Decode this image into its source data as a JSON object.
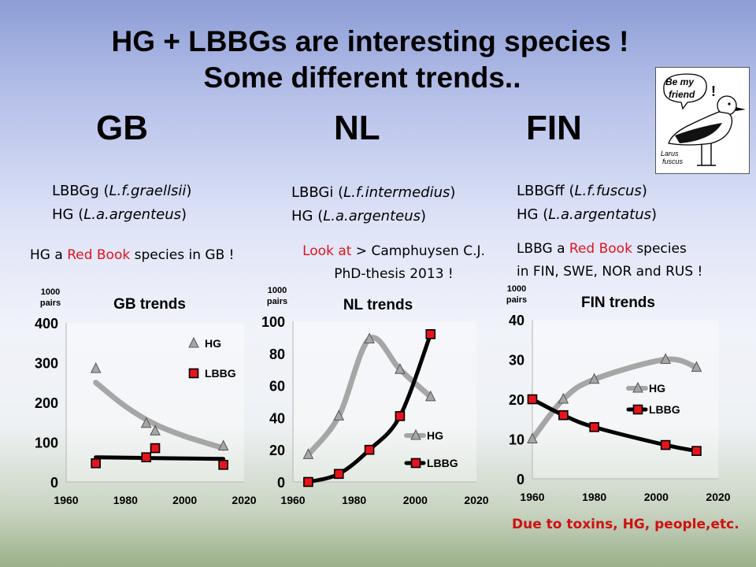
{
  "slide": {
    "title_line1": "HG  +  LBBGs are interesting species !",
    "title_line2": "Some different trends..",
    "countries": [
      "GB",
      "NL",
      "FIN"
    ],
    "gb_sub": [
      {
        "name": "LBBGg (",
        "latin": "L.f.graellsii",
        "end": ")"
      },
      {
        "name": "HG  (",
        "latin": "L.a.argenteus",
        "end": ")"
      }
    ],
    "nl_sub": [
      {
        "name": "LBBGi (",
        "latin": "L.f.intermedius",
        "end": ")"
      },
      {
        "name": "HG  (",
        "latin": "L.a.argenteus",
        "end": ")"
      }
    ],
    "fin_sub": [
      {
        "name": "LBBGff (",
        "latin": "L.f.fuscus",
        "end": ")"
      },
      {
        "name": "HG  (",
        "latin": "L.a.argentatus",
        "end": ")"
      }
    ],
    "gb_note": {
      "pre": "HG a ",
      "red": "Red Book",
      "post": " species in GB  !"
    },
    "nl_note": {
      "red": "Look at",
      "post": " > Camphuysen C.J.",
      "line2": "PhD-thesis 2013  !"
    },
    "fin_note": {
      "pre": "LBBG  a ",
      "red": "Red Book",
      "post": " species",
      "line2": "in FIN, SWE, NOR and RUS !"
    },
    "footer": "Due to toxins, HG, people,etc.",
    "badge": {
      "line1": "Be my",
      "line2": "friend",
      "mark": "!",
      "latin1": "Larus",
      "latin2": "fuscus"
    }
  },
  "chart_data": [
    {
      "type": "line",
      "title": "GB trends",
      "ylabel": "1000 pairs",
      "xlim": [
        1960,
        2020
      ],
      "ylim": [
        0,
        400
      ],
      "xticks": [
        1960,
        1980,
        2000,
        2020
      ],
      "yticks": [
        0,
        100,
        200,
        300,
        400
      ],
      "legend": "right",
      "series": [
        {
          "name": "HG",
          "color": "#a6a6a6",
          "marker": "triangle",
          "points": [
            [
              1970,
              285
            ],
            [
              1987,
              147
            ],
            [
              1990,
              128
            ],
            [
              2013,
              90
            ]
          ],
          "trend": [
            [
              1970,
              250
            ],
            [
              1980,
              190
            ],
            [
              1990,
              145
            ],
            [
              2000,
              115
            ],
            [
              2013,
              85
            ]
          ]
        },
        {
          "name": "LBBG",
          "color": "#000000",
          "marker": "square",
          "points": [
            [
              1970,
              47
            ],
            [
              1987,
              62
            ],
            [
              1990,
              85
            ],
            [
              2013,
              43
            ]
          ],
          "trend": [
            [
              1970,
              62
            ],
            [
              1990,
              60
            ],
            [
              2013,
              58
            ]
          ]
        }
      ]
    },
    {
      "type": "line",
      "title": "NL trends",
      "ylabel": "1000 pairs",
      "xlim": [
        1960,
        2020
      ],
      "ylim": [
        0,
        100
      ],
      "xticks": [
        1960,
        1980,
        2000,
        2020
      ],
      "yticks": [
        0,
        20,
        40,
        60,
        80,
        100
      ],
      "legend": "bottom-right",
      "series": [
        {
          "name": "HG",
          "color": "#a6a6a6",
          "marker": "triangle",
          "points": [
            [
              1965,
              17
            ],
            [
              1975,
              41
            ],
            [
              1985,
              89
            ],
            [
              1995,
              70
            ],
            [
              2005,
              53
            ]
          ],
          "trend": [
            [
              1965,
              17
            ],
            [
              1975,
              41
            ],
            [
              1985,
              89
            ],
            [
              1995,
              70
            ],
            [
              2005,
              53
            ]
          ]
        },
        {
          "name": "LBBG",
          "color": "#000000",
          "marker": "square",
          "points": [
            [
              1965,
              0
            ],
            [
              1975,
              5
            ],
            [
              1985,
              20
            ],
            [
              1995,
              41
            ],
            [
              2005,
              92
            ]
          ],
          "trend": [
            [
              1965,
              0
            ],
            [
              1975,
              5
            ],
            [
              1985,
              20
            ],
            [
              1995,
              41
            ],
            [
              2005,
              92
            ]
          ]
        }
      ]
    },
    {
      "type": "line",
      "title": "FIN trends",
      "ylabel": "1000 pairs",
      "xlim": [
        1960,
        2020
      ],
      "ylim": [
        0,
        40
      ],
      "xticks": [
        1960,
        1980,
        2000,
        2020
      ],
      "yticks": [
        0,
        10,
        20,
        30,
        40
      ],
      "legend": "center-left",
      "series": [
        {
          "name": "HG",
          "color": "#a6a6a6",
          "marker": "triangle",
          "points": [
            [
              1960,
              10
            ],
            [
              1970,
              20
            ],
            [
              1980,
              25
            ],
            [
              2003,
              30
            ],
            [
              2013,
              28
            ]
          ],
          "trend": [
            [
              1960,
              10
            ],
            [
              1970,
              20
            ],
            [
              1980,
              25
            ],
            [
              2003,
              30
            ],
            [
              2013,
              28
            ]
          ]
        },
        {
          "name": "LBBG",
          "color": "#000000",
          "marker": "square",
          "points": [
            [
              1960,
              20
            ],
            [
              1970,
              16
            ],
            [
              1980,
              13
            ],
            [
              2003,
              8.5
            ],
            [
              2013,
              7
            ]
          ],
          "trend": [
            [
              1960,
              20
            ],
            [
              1970,
              16
            ],
            [
              1980,
              13
            ],
            [
              2003,
              8.5
            ],
            [
              2013,
              7
            ]
          ]
        }
      ]
    }
  ]
}
